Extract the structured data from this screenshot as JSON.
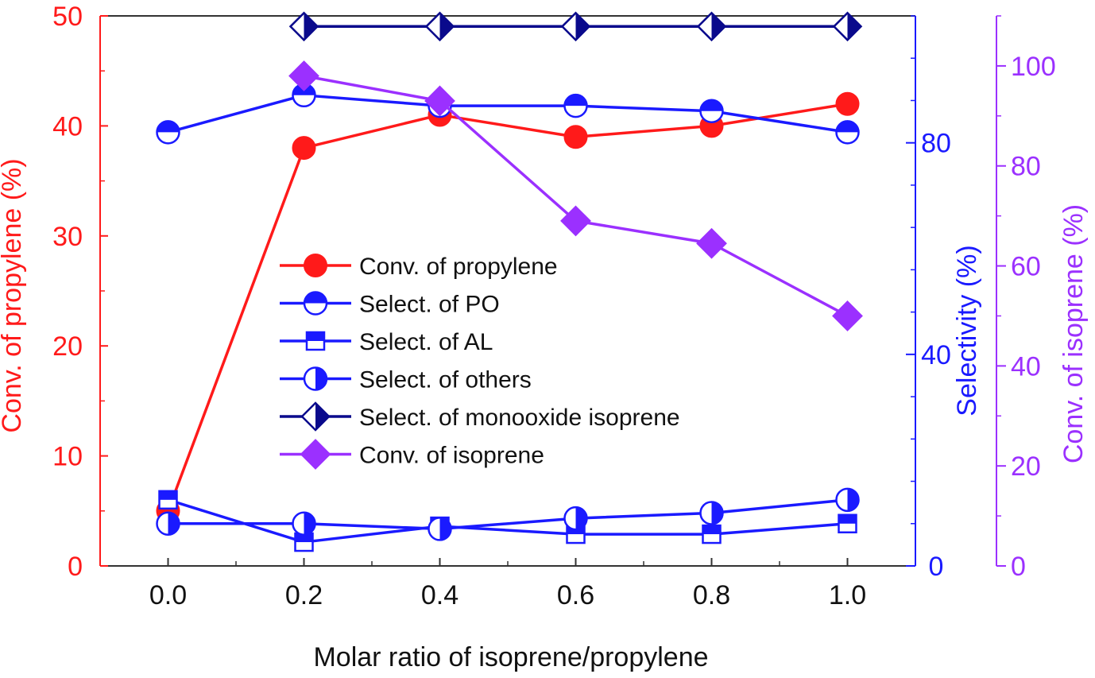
{
  "chart_data": {
    "type": "line",
    "title": "",
    "xlabel": "Molar ratio of isoprene/propylene",
    "x": [
      0.0,
      0.2,
      0.4,
      0.6,
      0.8,
      1.0
    ],
    "x_ticks": [
      "0.0",
      "0.2",
      "0.4",
      "0.6",
      "0.8",
      "1.0"
    ],
    "xlim": [
      -0.1,
      1.1
    ],
    "axes": {
      "left": {
        "label": "Conv. of propylene (%)",
        "ylim": [
          0,
          50
        ],
        "ticks": [
          "0",
          "10",
          "20",
          "30",
          "40",
          "50"
        ],
        "color": "#ff1a1a"
      },
      "right1": {
        "label": "Selectivity (%)",
        "ylim": [
          0,
          104
        ],
        "ticks": [
          "0",
          "40",
          "80"
        ],
        "color": "#1a1aff"
      },
      "right2": {
        "label": "Conv. of isoprene (%)",
        "ylim": [
          0,
          110
        ],
        "ticks": [
          "0",
          "20",
          "40",
          "60",
          "80",
          "100"
        ],
        "color": "#9b30ff"
      }
    },
    "series": [
      {
        "name": "Conv. of propylene",
        "axis": "left",
        "color": "#ff1a1a",
        "marker": "circle-filled",
        "values": [
          5,
          38,
          41,
          39,
          40,
          42
        ]
      },
      {
        "name": "Select. of PO",
        "axis": "right1",
        "color": "#1a1aff",
        "marker": "circle-top-half",
        "values": [
          82,
          89,
          87,
          87,
          86,
          82
        ]
      },
      {
        "name": "Select. of AL",
        "axis": "right1",
        "color": "#1a1aff",
        "marker": "square-top-half",
        "values": [
          12.5,
          4.5,
          7.5,
          6,
          6,
          8
        ]
      },
      {
        "name": "Select. of others",
        "axis": "right1",
        "color": "#1a1aff",
        "marker": "circle-right-half",
        "values": [
          8,
          8,
          7,
          9,
          10,
          12.5
        ]
      },
      {
        "name": "Select. of monooxide isoprene",
        "axis": "right1",
        "color": "#0a0a8c",
        "marker": "diamond-right-half",
        "values": [
          null,
          102,
          102,
          102,
          102,
          102
        ]
      },
      {
        "name": "Conv. of isoprene",
        "axis": "right2",
        "color": "#9b30ff",
        "marker": "diamond-filled",
        "values": [
          null,
          98,
          93,
          69,
          64.5,
          50
        ]
      }
    ],
    "legend_position": "center-left"
  }
}
